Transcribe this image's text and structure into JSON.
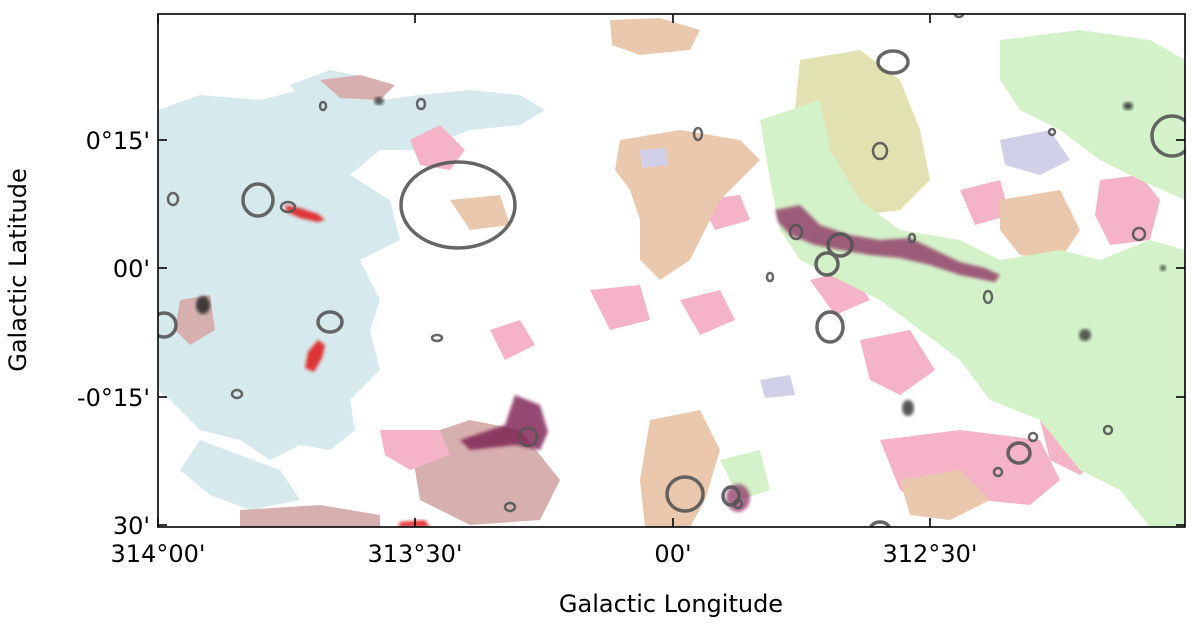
{
  "axes": {
    "xlabel": "Galactic Longitude",
    "ylabel": "Galactic Latitude",
    "x_ticks": [
      "314°00'",
      "313°30'",
      "00'",
      "312°30'"
    ],
    "y_ticks": [
      "0°15'",
      "00'",
      "-0°15'",
      "30'"
    ]
  },
  "palette": {
    "lightblue": "#cfe6ea",
    "pink": "#f3a6bd",
    "rosybrown": "#cfa3a0",
    "tan": "#e6bf9f",
    "lightgreen": "#cdf0c0",
    "khaki": "#dcdca4",
    "lavender": "#c8c8e4",
    "magenta": "#7a1a4f",
    "red": "#e02020",
    "ellipse": "#555555"
  },
  "marker_shape": "ellipse"
}
